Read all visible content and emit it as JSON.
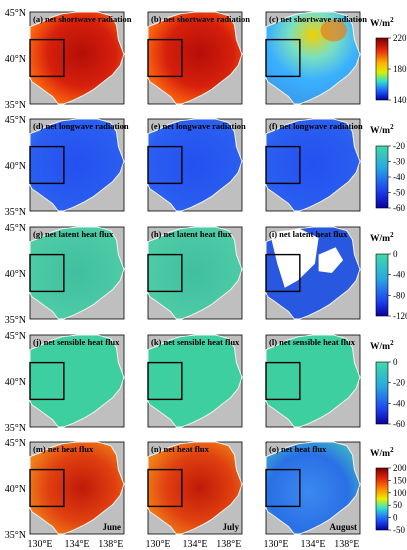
{
  "latitude_labels": [
    "45°N",
    "40°N",
    "35°N"
  ],
  "longitude_labels": [
    "130°E",
    "134°E",
    "138°E"
  ],
  "month_labels": [
    "June",
    "July",
    "August"
  ],
  "panel_labels": [
    [
      "(a) net shortwave radiation",
      "(b) net shortwave radiation",
      "(c) net shortwave radiation"
    ],
    [
      "(d) net longwave radiation",
      "(e) net longwave radiation",
      "(f) net longwave radiation"
    ],
    [
      "(g) net latent heat flux",
      "(h) net latent heat flux",
      "(i) net latent heat flux"
    ],
    [
      "(j) net sensible heat flux",
      "(k) net sensible heat flux",
      "(l) net sensible heat flux"
    ],
    [
      "(m) net heat flux",
      "(n) net heat flux",
      "(o) net heat flux"
    ]
  ],
  "colorbars": [
    {
      "unit": "W/m",
      "sup": "2",
      "ticks": [
        "220",
        "180",
        "140"
      ]
    },
    {
      "unit": "W/m",
      "sup": "2",
      "ticks": [
        "-20",
        "-30",
        "-40",
        "-50",
        "-60"
      ]
    },
    {
      "unit": "W/m",
      "sup": "2",
      "ticks": [
        "0",
        "-40",
        "-80",
        "-120"
      ]
    },
    {
      "unit": "W/m",
      "sup": "2",
      "ticks": [
        "0",
        "-20",
        "-40",
        "-60"
      ]
    },
    {
      "unit": "W/m",
      "sup": "2",
      "ticks": [
        "200",
        "150",
        "100",
        "50",
        "0",
        "-50"
      ]
    }
  ],
  "colors": {
    "land": "#bfbfbf",
    "sw_jun_jul": "#c0180c",
    "sw_aug": "#3ab0ff",
    "lw": "#2a5cf0",
    "latent": "#46c8a0",
    "latent_aug": "#2858e0",
    "sensible": "#3ecfa0",
    "net_jun_jul": "#e04010",
    "net_aug": "#2a78e6"
  }
}
